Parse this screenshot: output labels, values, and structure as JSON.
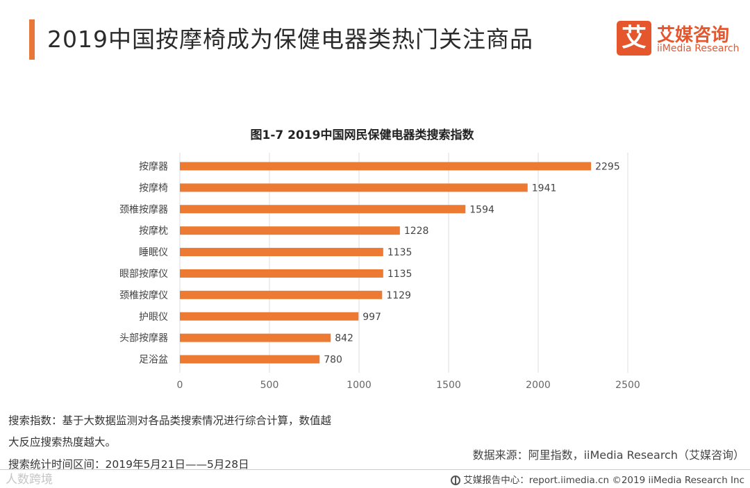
{
  "colors": {
    "accent": "#e8773a",
    "bar": "#ec7a33",
    "logo": "#e6562d",
    "axis": "#dddddd"
  },
  "header": {
    "title": "2019中国按摩椅成为保健电器类热门关注商品"
  },
  "logo": {
    "mark": "艾",
    "cn": "艾媒咨询",
    "en": "iiMedia Research"
  },
  "chart_data": {
    "type": "bar",
    "orientation": "horizontal",
    "title": "图1-7  2019中国网民保健电器类搜索指数",
    "categories": [
      "按摩器",
      "按摩椅",
      "颈椎按摩器",
      "按摩枕",
      "睡眠仪",
      "眼部按摩仪",
      "颈椎按摩仪",
      "护眼仪",
      "头部按摩器",
      "足浴盆"
    ],
    "values": [
      2295,
      1941,
      1594,
      1228,
      1135,
      1135,
      1129,
      997,
      842,
      780
    ],
    "xlim": [
      0,
      2500
    ],
    "xticks": [
      0,
      500,
      1000,
      1500,
      2000,
      2500
    ],
    "xlabel": "",
    "ylabel": "",
    "grid": true
  },
  "notes": {
    "line1": "搜索指数：基于大数据监测对各品类搜索情况进行综合计算，数值越",
    "line2": "大反应搜索热度越大。",
    "line3": "搜索统计时间区间：2019年5月21日——5月28日"
  },
  "source": "数据来源：阿里指数，iiMedia Research（艾媒咨询）",
  "footer": "艾媒报告中心：report.iimedia.cn ©2019  iiMedia Research  Inc",
  "watermark": "人数跨境"
}
